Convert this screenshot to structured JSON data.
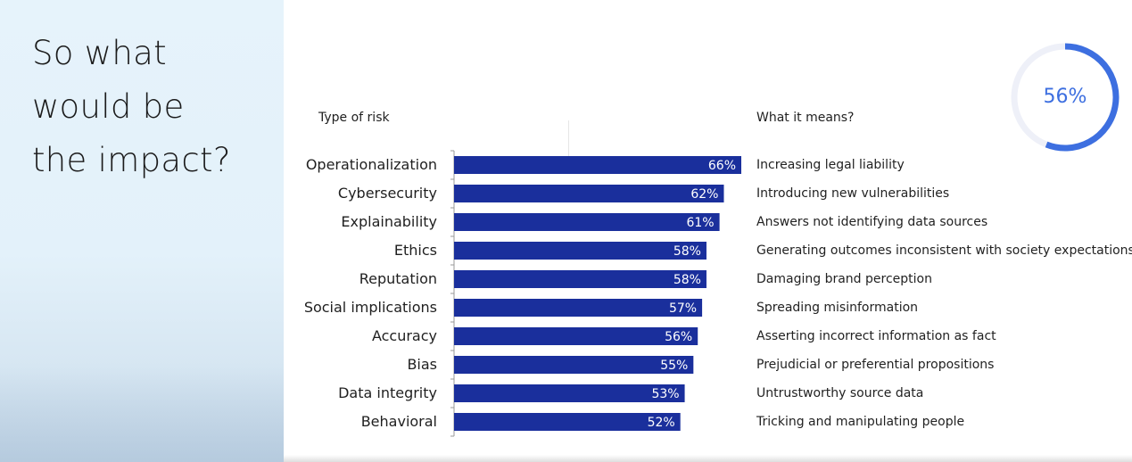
{
  "headline": [
    "So what",
    "would be",
    "the impact?"
  ],
  "gauge": {
    "value": 0.56,
    "label": "56%",
    "color": "#3d6fe0",
    "track_color": "#eef0f8"
  },
  "chart_data": {
    "type": "bar",
    "orientation": "horizontal",
    "left_header": "Type of risk",
    "right_header": "What it means?",
    "categories": [
      "Operationalization",
      "Cybersecurity",
      "Explainability",
      "Ethics",
      "Reputation",
      "Social implications",
      "Accuracy",
      "Bias",
      "Data integrity",
      "Behavioral"
    ],
    "values": [
      66,
      62,
      61,
      58,
      58,
      57,
      56,
      55,
      53,
      52
    ],
    "data_labels": [
      "66%",
      "62%",
      "61%",
      "58%",
      "58%",
      "57%",
      "56%",
      "55%",
      "53%",
      "52%"
    ],
    "meanings": [
      "Increasing legal liability",
      "Introducing new vulnerabilities",
      "Answers not identifying data sources",
      "Generating outcomes inconsistent with society expectations",
      "Damaging brand perception",
      "Spreading misinformation",
      "Asserting incorrect information as fact",
      "Prejudicial or preferential propositions",
      "Untrustworthy source data",
      "Tricking and manipulating people"
    ],
    "bar_color": "#1a2f9c",
    "grid": false
  }
}
